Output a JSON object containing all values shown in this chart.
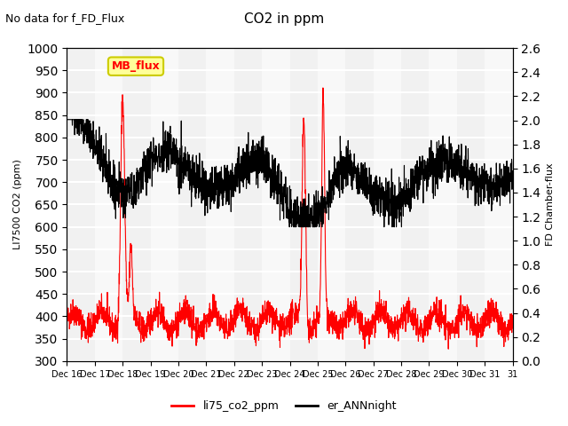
{
  "title": "CO2 in ppm",
  "subtitle": "No data for f_FD_Flux",
  "ylabel_left": "LI7500 CO2 (ppm)",
  "ylabel_right": "FD Chamber-flux",
  "ylim_left": [
    300,
    1000
  ],
  "ylim_right": [
    0.0,
    2.6
  ],
  "yticks_left": [
    300,
    350,
    400,
    450,
    500,
    550,
    600,
    650,
    700,
    750,
    800,
    850,
    900,
    950,
    1000
  ],
  "yticks_right": [
    0.0,
    0.2,
    0.4,
    0.6,
    0.8,
    1.0,
    1.2,
    1.4,
    1.6,
    1.8,
    2.0,
    2.2,
    2.4,
    2.6
  ],
  "legend_labels": [
    "li75_co2_ppm",
    "er_ANNnight"
  ],
  "legend_colors": [
    "red",
    "black"
  ],
  "line1_color": "red",
  "line2_color": "black",
  "background_color": "#f0f0f0",
  "plot_bg_color": "#f8f8f8",
  "grid_color": "white",
  "mb_flux_box_color": "#ffff99",
  "mb_flux_text_color": "red",
  "n_days": 16
}
